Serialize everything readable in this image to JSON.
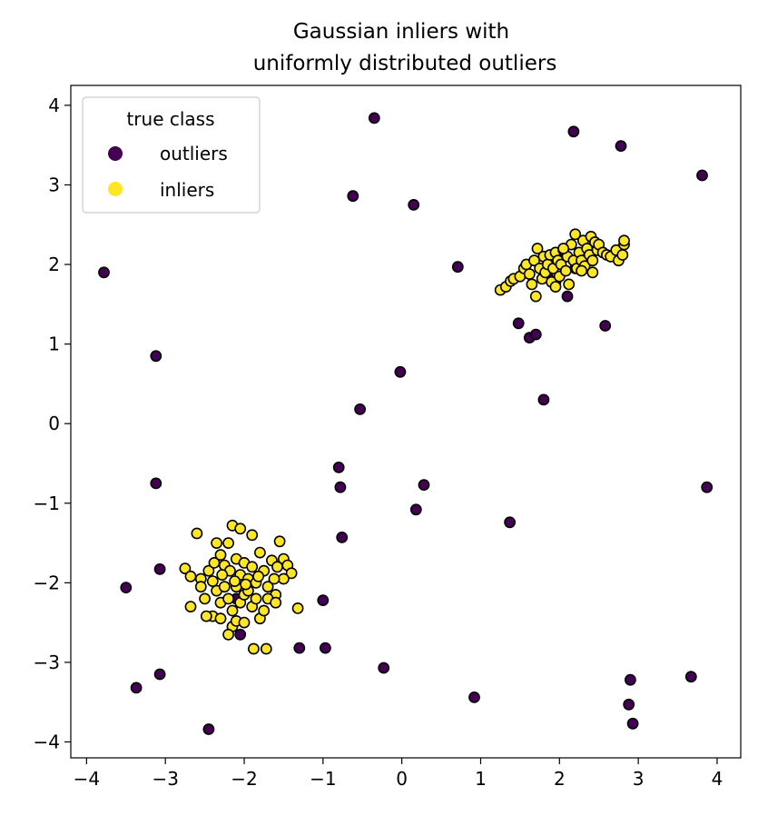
{
  "chart_data": {
    "type": "scatter",
    "title_lines": [
      "Gaussian inliers with",
      "uniformly distributed outliers"
    ],
    "xlabel": "",
    "ylabel": "",
    "xlim": [
      -4.2,
      4.3
    ],
    "ylim": [
      -4.2,
      4.25
    ],
    "xticks": [
      -4,
      -3,
      -2,
      -1,
      0,
      1,
      2,
      3,
      4
    ],
    "yticks": [
      -4,
      -3,
      -2,
      -1,
      0,
      1,
      2,
      3,
      4
    ],
    "xtick_labels": [
      "−4",
      "−3",
      "−2",
      "−1",
      "0",
      "1",
      "2",
      "3",
      "4"
    ],
    "ytick_labels": [
      "−4",
      "−3",
      "−2",
      "−1",
      "0",
      "1",
      "2",
      "3",
      "4"
    ],
    "grid": false,
    "legend": {
      "title": "true class",
      "placement": "top-left",
      "entries": [
        {
          "label": "outliers",
          "color": "#440154"
        },
        {
          "label": "inliers",
          "color": "#fde725"
        }
      ]
    },
    "marker_edge_color": "#000000",
    "series": [
      {
        "name": "outliers",
        "color": "#440154",
        "points": [
          [
            -3.78,
            1.9
          ],
          [
            -3.12,
            0.85
          ],
          [
            -3.12,
            -0.75
          ],
          [
            -3.07,
            -1.83
          ],
          [
            -3.5,
            -2.06
          ],
          [
            -3.07,
            -3.15
          ],
          [
            -3.37,
            -3.32
          ],
          [
            -2.45,
            -3.84
          ],
          [
            -2.05,
            -2.65
          ],
          [
            -1.3,
            -2.82
          ],
          [
            -0.97,
            -2.82
          ],
          [
            -1.0,
            -2.22
          ],
          [
            -0.23,
            -3.07
          ],
          [
            -0.8,
            -0.55
          ],
          [
            -0.78,
            -0.8
          ],
          [
            -0.76,
            -1.43
          ],
          [
            0.18,
            -1.08
          ],
          [
            0.28,
            -0.77
          ],
          [
            -0.35,
            3.84
          ],
          [
            -0.62,
            2.86
          ],
          [
            0.15,
            2.75
          ],
          [
            -0.53,
            0.18
          ],
          [
            -0.02,
            0.65
          ],
          [
            0.71,
            1.97
          ],
          [
            0.92,
            -3.44
          ],
          [
            1.37,
            -1.24
          ],
          [
            1.48,
            1.26
          ],
          [
            1.62,
            1.08
          ],
          [
            1.7,
            1.12
          ],
          [
            1.8,
            0.3
          ],
          [
            2.1,
            1.6
          ],
          [
            2.18,
            3.67
          ],
          [
            2.58,
            1.23
          ],
          [
            2.78,
            3.49
          ],
          [
            3.81,
            3.12
          ],
          [
            3.87,
            -0.8
          ],
          [
            3.67,
            -3.18
          ],
          [
            2.9,
            -3.22
          ],
          [
            2.88,
            -3.53
          ],
          [
            2.93,
            -3.77
          ],
          [
            1.85,
            1.85
          ],
          [
            2.0,
            2.1
          ],
          [
            2.2,
            1.95
          ],
          [
            1.95,
            1.78
          ],
          [
            -2.1,
            -2.2
          ]
        ]
      },
      {
        "name": "inliers",
        "color": "#fde725",
        "points": [
          [
            1.25,
            1.68
          ],
          [
            1.32,
            1.72
          ],
          [
            1.38,
            1.79
          ],
          [
            1.42,
            1.82
          ],
          [
            1.5,
            1.85
          ],
          [
            1.55,
            1.95
          ],
          [
            1.58,
            2.0
          ],
          [
            1.62,
            1.88
          ],
          [
            1.65,
            1.75
          ],
          [
            1.68,
            2.05
          ],
          [
            1.7,
            1.6
          ],
          [
            1.72,
            2.2
          ],
          [
            1.75,
            1.95
          ],
          [
            1.78,
            1.82
          ],
          [
            1.8,
            2.1
          ],
          [
            1.82,
            1.9
          ],
          [
            1.85,
            2.0
          ],
          [
            1.88,
            2.12
          ],
          [
            1.9,
            1.78
          ],
          [
            1.92,
            1.95
          ],
          [
            1.95,
            2.15
          ],
          [
            1.98,
            2.05
          ],
          [
            2.0,
            1.85
          ],
          [
            2.02,
            2.0
          ],
          [
            2.05,
            2.18
          ],
          [
            2.08,
            1.92
          ],
          [
            2.1,
            2.1
          ],
          [
            2.12,
            1.75
          ],
          [
            2.15,
            2.25
          ],
          [
            2.18,
            2.05
          ],
          [
            2.2,
            2.38
          ],
          [
            2.22,
            1.95
          ],
          [
            2.25,
            2.15
          ],
          [
            2.28,
            2.05
          ],
          [
            2.3,
            2.3
          ],
          [
            2.32,
            1.98
          ],
          [
            2.35,
            2.2
          ],
          [
            2.38,
            2.12
          ],
          [
            2.4,
            2.35
          ],
          [
            2.42,
            2.05
          ],
          [
            2.45,
            2.28
          ],
          [
            2.48,
            2.18
          ],
          [
            2.5,
            2.25
          ],
          [
            2.55,
            2.15
          ],
          [
            2.6,
            2.12
          ],
          [
            2.65,
            2.1
          ],
          [
            2.72,
            2.18
          ],
          [
            2.75,
            2.05
          ],
          [
            2.8,
            2.12
          ],
          [
            2.82,
            2.25
          ],
          [
            2.82,
            2.3
          ],
          [
            2.28,
            1.92
          ],
          [
            2.42,
            1.9
          ],
          [
            1.95,
            1.72
          ],
          [
            2.05,
            2.2
          ],
          [
            -2.6,
            -1.38
          ],
          [
            -2.15,
            -1.28
          ],
          [
            -2.05,
            -1.32
          ],
          [
            -1.9,
            -1.4
          ],
          [
            -1.55,
            -1.48
          ],
          [
            -2.2,
            -1.5
          ],
          [
            -2.35,
            -1.5
          ],
          [
            -1.5,
            -1.7
          ],
          [
            -1.45,
            -1.78
          ],
          [
            -1.4,
            -1.88
          ],
          [
            -1.5,
            -1.95
          ],
          [
            -2.75,
            -1.82
          ],
          [
            -2.68,
            -1.92
          ],
          [
            -2.55,
            -1.95
          ],
          [
            -2.45,
            -1.85
          ],
          [
            -2.38,
            -1.75
          ],
          [
            -2.3,
            -1.65
          ],
          [
            -2.25,
            -1.78
          ],
          [
            -2.18,
            -1.85
          ],
          [
            -2.1,
            -1.7
          ],
          [
            -2.05,
            -1.9
          ],
          [
            -2.0,
            -1.75
          ],
          [
            -1.95,
            -1.95
          ],
          [
            -1.9,
            -1.8
          ],
          [
            -1.85,
            -2.0
          ],
          [
            -1.8,
            -1.62
          ],
          [
            -1.75,
            -1.85
          ],
          [
            -1.7,
            -2.05
          ],
          [
            -1.65,
            -1.72
          ],
          [
            -1.62,
            -1.95
          ],
          [
            -1.6,
            -2.15
          ],
          [
            -1.58,
            -1.8
          ],
          [
            -2.35,
            -2.1
          ],
          [
            -2.3,
            -2.25
          ],
          [
            -2.25,
            -2.05
          ],
          [
            -2.2,
            -2.2
          ],
          [
            -2.15,
            -2.35
          ],
          [
            -2.1,
            -2.05
          ],
          [
            -2.05,
            -2.25
          ],
          [
            -2.0,
            -2.15
          ],
          [
            -1.95,
            -2.1
          ],
          [
            -1.9,
            -2.3
          ],
          [
            -1.85,
            -2.2
          ],
          [
            -1.8,
            -2.45
          ],
          [
            -1.75,
            -2.35
          ],
          [
            -1.7,
            -2.2
          ],
          [
            -1.6,
            -2.25
          ],
          [
            -2.5,
            -2.2
          ],
          [
            -2.55,
            -2.05
          ],
          [
            -2.68,
            -2.3
          ],
          [
            -2.4,
            -2.42
          ],
          [
            -2.3,
            -2.45
          ],
          [
            -2.15,
            -2.55
          ],
          [
            -2.1,
            -2.48
          ],
          [
            -2.0,
            -2.5
          ],
          [
            -2.2,
            -2.65
          ],
          [
            -1.88,
            -2.83
          ],
          [
            -1.72,
            -2.83
          ],
          [
            -1.32,
            -2.32
          ],
          [
            -2.48,
            -2.42
          ],
          [
            -2.28,
            -1.9
          ],
          [
            -2.12,
            -1.98
          ],
          [
            -1.98,
            -2.02
          ],
          [
            -1.82,
            -1.92
          ],
          [
            -2.4,
            -1.98
          ]
        ]
      }
    ]
  }
}
